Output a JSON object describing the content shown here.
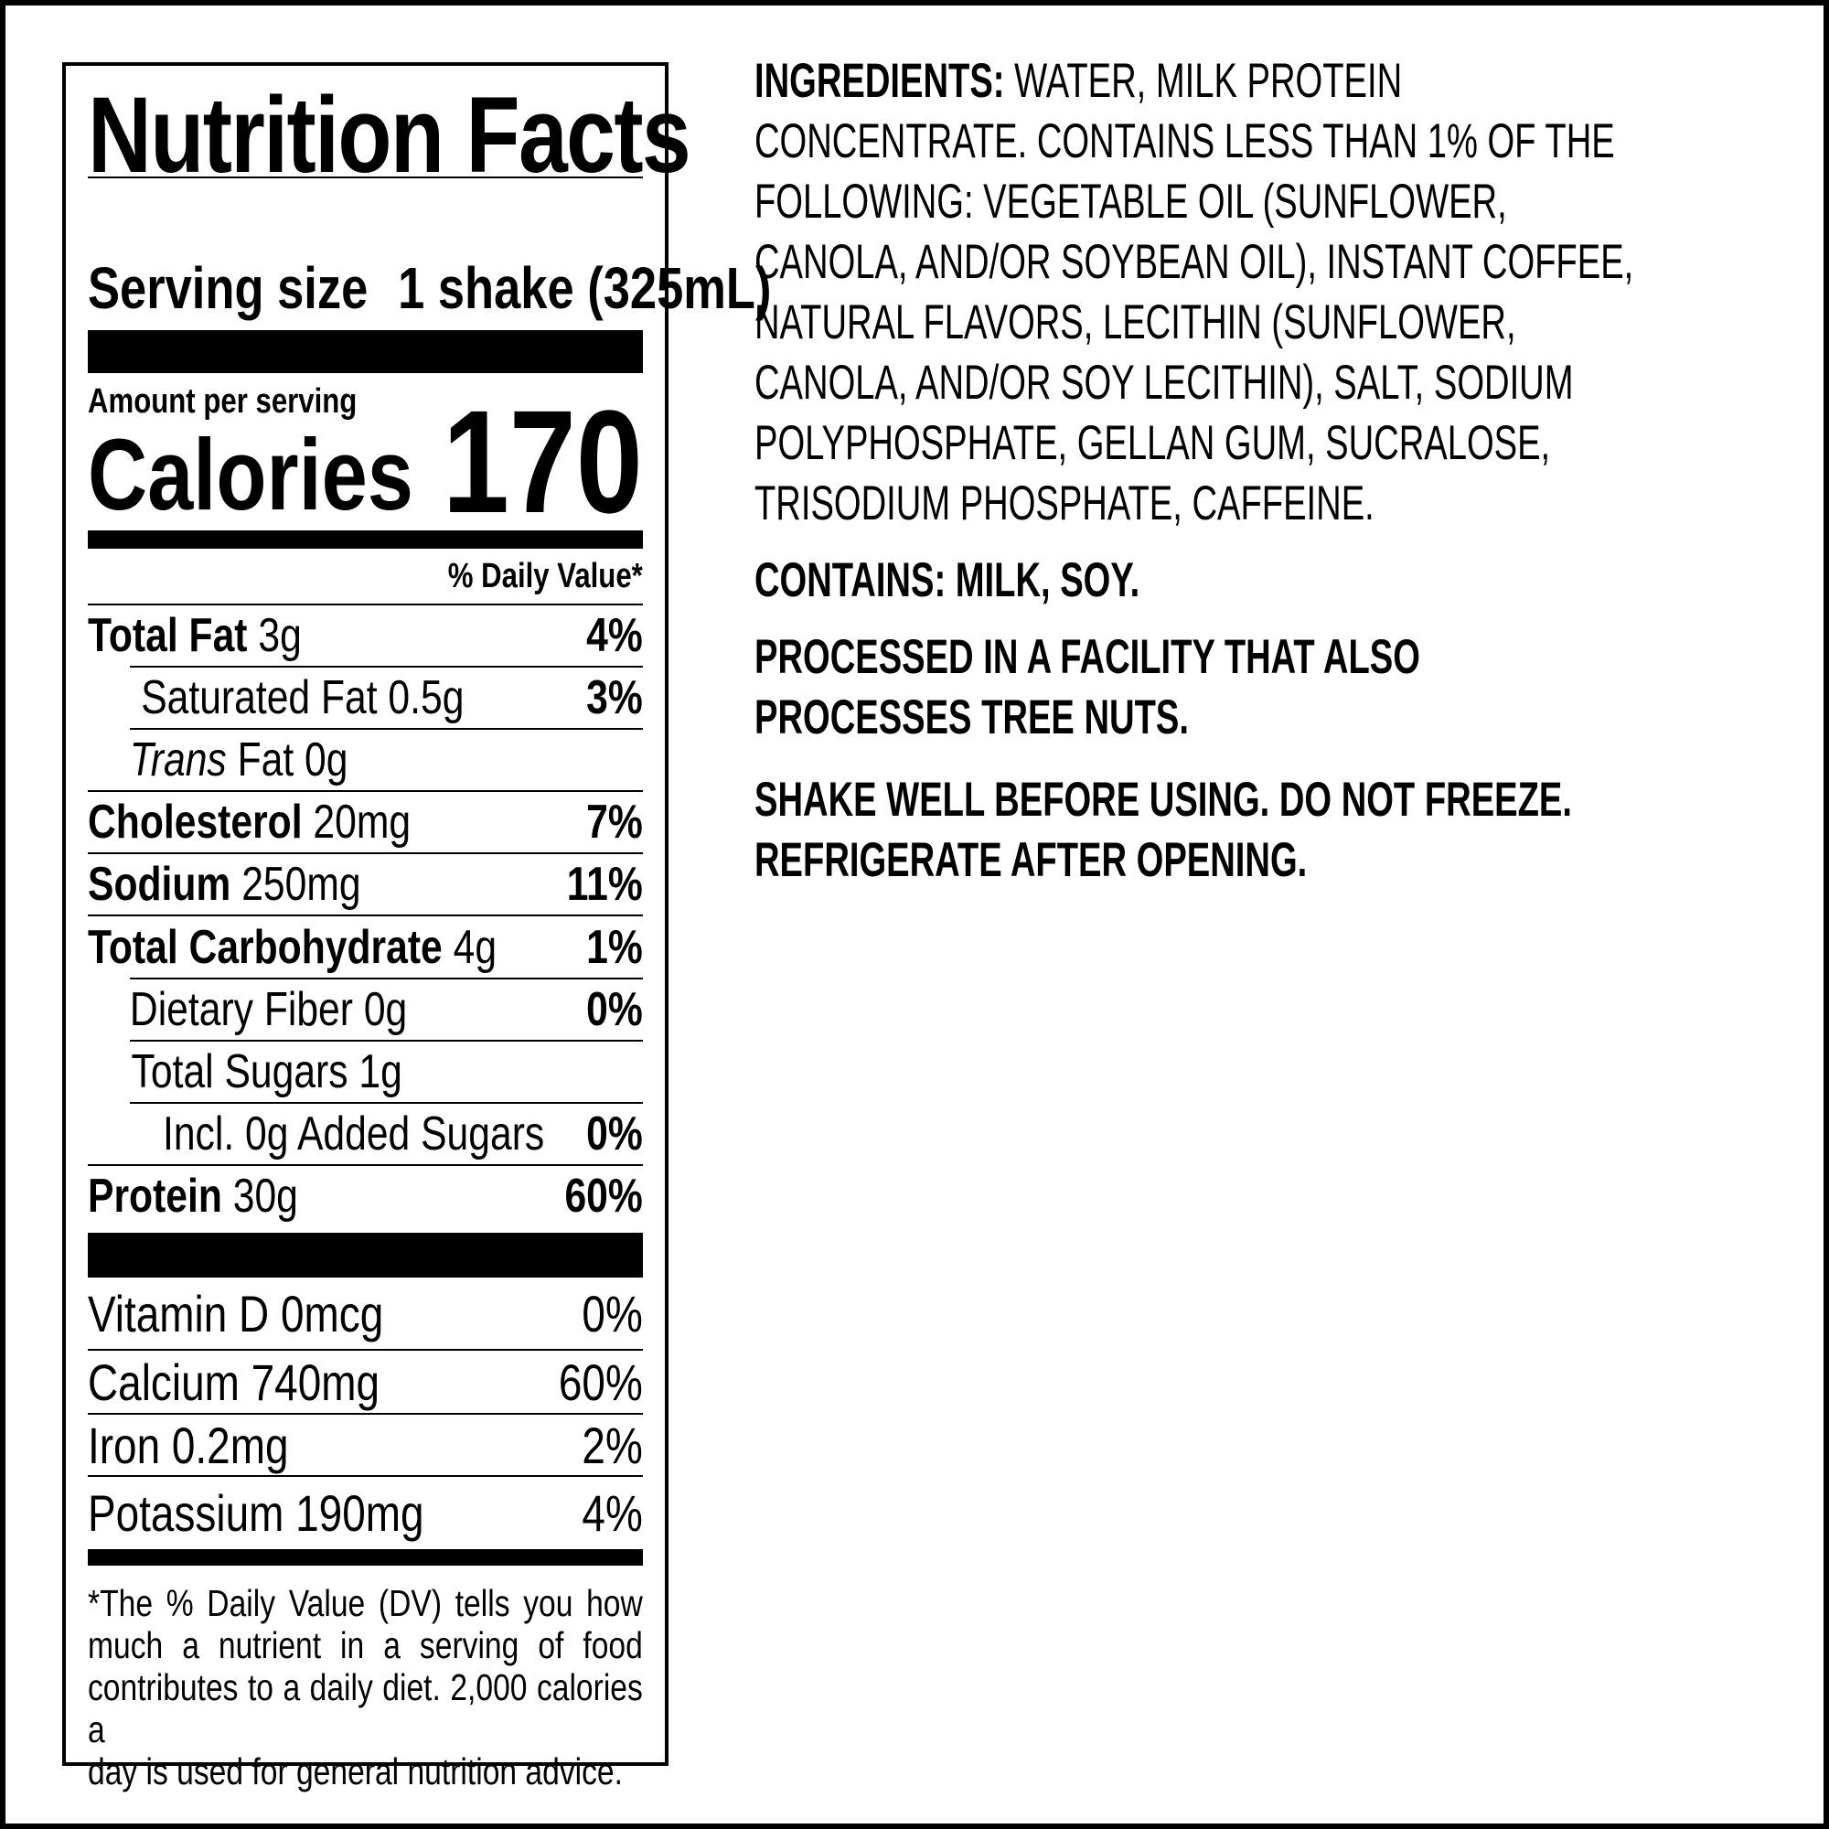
{
  "label": {
    "title": "Nutrition Facts",
    "serving_size_label": "Serving size",
    "serving_size_value": "1 shake (325mL)",
    "amount_per_serving": "Amount per serving",
    "calories_label": "Calories",
    "calories_value": "170",
    "dv_header": "% Daily Value*",
    "nutrients": [
      {
        "name": "Total Fat",
        "amount": "3g",
        "dv": "4%"
      },
      {
        "name": "Saturated Fat",
        "amount": "0.5g",
        "dv": "3%"
      },
      {
        "name": "Trans",
        "amount": "Fat 0g",
        "dv": ""
      },
      {
        "name": "Cholesterol",
        "amount": "20mg",
        "dv": "7%"
      },
      {
        "name": "Sodium",
        "amount": "250mg",
        "dv": "11%"
      },
      {
        "name": "Total Carbohydrate",
        "amount": "4g",
        "dv": "1%"
      },
      {
        "name": "Dietary Fiber",
        "amount": "0g",
        "dv": "0%"
      },
      {
        "name": "Total Sugars",
        "amount": "1g",
        "dv": ""
      },
      {
        "name": "Incl. 0g Added Sugars",
        "amount": "",
        "dv": "0%"
      },
      {
        "name": "Protein",
        "amount": "30g",
        "dv": "60%"
      }
    ],
    "vitamins": [
      {
        "name": "Vitamin D 0mcg",
        "dv": "0%"
      },
      {
        "name": "Calcium 740mg",
        "dv": "60%"
      },
      {
        "name": "Iron 0.2mg",
        "dv": "2%"
      },
      {
        "name": "Potassium 190mg",
        "dv": "4%"
      }
    ],
    "footnote_lines": [
      "*The % Daily Value (DV) tells you how",
      "much a nutrient in a serving of food",
      "contributes to a daily diet. 2,000 calories a",
      "day is used for general nutrition advice."
    ]
  },
  "info": {
    "ingredients_heading": "INGREDIENTS:",
    "ingredients_lines": [
      " WATER, MILK PROTEIN",
      "CONCENTRATE. CONTAINS LESS THAN 1% OF THE",
      "FOLLOWING: VEGETABLE OIL (SUNFLOWER,",
      "CANOLA, AND/OR SOYBEAN OIL), INSTANT COFFEE,",
      "NATURAL FLAVORS, LECITHIN (SUNFLOWER,",
      "CANOLA, AND/OR SOY LECITHIN), SALT, SODIUM",
      "POLYPHOSPHATE, GELLAN GUM, SUCRALOSE,",
      "TRISODIUM PHOSPHATE, CAFFEINE."
    ],
    "contains": "CONTAINS: MILK, SOY.",
    "facility_lines": [
      "PROCESSED IN A FACILITY THAT ALSO",
      "PROCESSES TREE NUTS."
    ],
    "storage_lines": [
      "SHAKE WELL BEFORE USING. DO NOT FREEZE.",
      "REFRIGERATE AFTER OPENING."
    ]
  }
}
